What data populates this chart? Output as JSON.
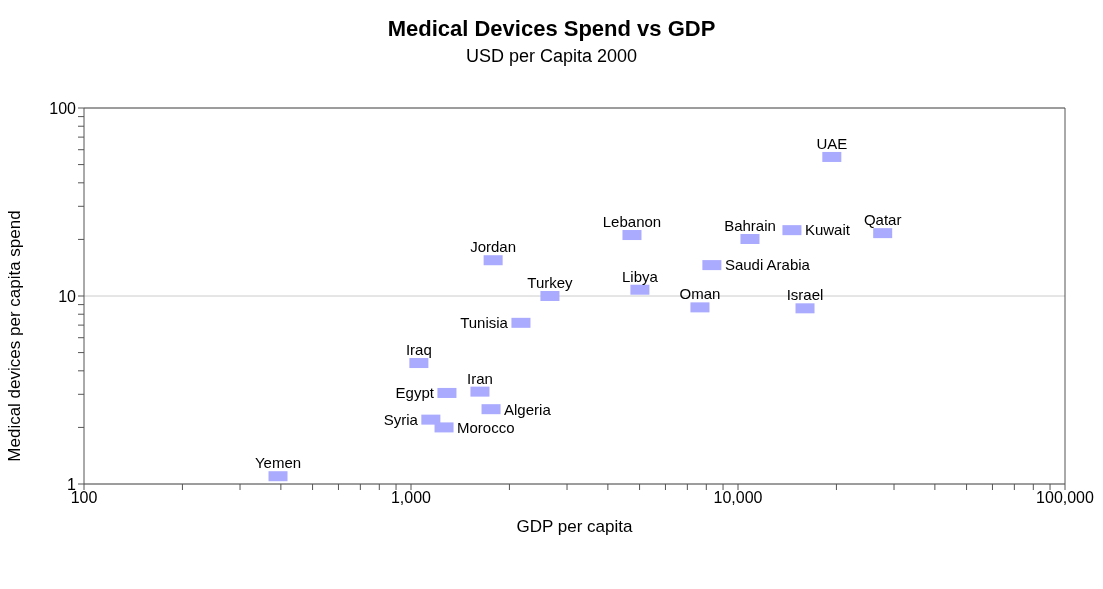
{
  "chart_data": {
    "type": "scatter",
    "title": "Medical Devices Spend vs GDP",
    "subtitle": "USD per Capita 2000",
    "xlabel": "GDP per capita",
    "ylabel": "Medical devices per capita spend",
    "log": "xy",
    "grid": "y",
    "marker": "square",
    "legend": false,
    "xlim": [
      100,
      100000
    ],
    "ylim": [
      1,
      100
    ],
    "xticks": [
      {
        "value": 100,
        "label": "100"
      },
      {
        "value": 200,
        "label": null
      },
      {
        "value": 300,
        "label": null
      },
      {
        "value": 400,
        "label": null
      },
      {
        "value": 500,
        "label": null
      },
      {
        "value": 600,
        "label": null
      },
      {
        "value": 700,
        "label": null
      },
      {
        "value": 800,
        "label": null
      },
      {
        "value": 900,
        "label": null
      },
      {
        "value": 1000,
        "label": "1,000"
      },
      {
        "value": 2000,
        "label": null
      },
      {
        "value": 3000,
        "label": null
      },
      {
        "value": 4000,
        "label": null
      },
      {
        "value": 5000,
        "label": null
      },
      {
        "value": 6000,
        "label": null
      },
      {
        "value": 7000,
        "label": null
      },
      {
        "value": 8000,
        "label": null
      },
      {
        "value": 9000,
        "label": null
      },
      {
        "value": 10000,
        "label": "10,000"
      },
      {
        "value": 20000,
        "label": null
      },
      {
        "value": 30000,
        "label": null
      },
      {
        "value": 40000,
        "label": null
      },
      {
        "value": 50000,
        "label": null
      },
      {
        "value": 60000,
        "label": null
      },
      {
        "value": 70000,
        "label": null
      },
      {
        "value": 80000,
        "label": null
      },
      {
        "value": 90000,
        "label": null
      },
      {
        "value": 100000,
        "label": "100,000"
      }
    ],
    "yticks": [
      1,
      {
        "value": 2,
        "label": null
      },
      {
        "value": 3,
        "label": null
      },
      {
        "value": 4,
        "label": null
      },
      {
        "value": 5,
        "label": null
      },
      {
        "value": 6,
        "label": null
      },
      {
        "value": 7,
        "label": null
      },
      {
        "value": 8,
        "label": null
      },
      {
        "value": 9,
        "label": null
      },
      10,
      {
        "value": 20,
        "label": null
      },
      {
        "value": 30,
        "label": null
      },
      {
        "value": 40,
        "label": null
      },
      {
        "value": 50,
        "label": null
      },
      {
        "value": 60,
        "label": null
      },
      {
        "value": 70,
        "label": null
      },
      {
        "value": 80,
        "label": null
      },
      {
        "value": 90,
        "label": null
      },
      100
    ],
    "series": [
      {
        "color": "#aaaaff",
        "x": [
          392,
          1057,
          1288,
          1625,
          1757,
          1150,
          1262,
          1783,
          2169,
          2660,
          4740,
          5012,
          7650,
          8320,
          10880,
          14620,
          19360,
          27700,
          16030
        ],
        "values": [
          1.1,
          4.4,
          3.05,
          3.1,
          2.5,
          2.2,
          2.0,
          15.5,
          7.2,
          10,
          21.1,
          10.8,
          8.7,
          14.6,
          20.1,
          22.4,
          54.9,
          21.6,
          8.6
        ]
      }
    ],
    "annotations": [
      {
        "text": "Yemen",
        "x": 392,
        "y": 1.1
      },
      {
        "text": "Iraq",
        "x": 1057,
        "y": 4.4
      },
      {
        "text": "Egypt",
        "x": 1288,
        "y": 3.05
      },
      {
        "text": "Iran",
        "x": 1625,
        "y": 3.1
      },
      {
        "text": "Algeria",
        "x": 1757,
        "y": 2.5
      },
      {
        "text": "Syria",
        "x": 1150,
        "y": 2.2
      },
      {
        "text": "Morocco",
        "x": 1262,
        "y": 2.0
      },
      {
        "text": "Jordan",
        "x": 1783,
        "y": 15.5
      },
      {
        "text": "Tunisia",
        "x": 2169,
        "y": 7.2
      },
      {
        "text": "Turkey",
        "x": 2660,
        "y": 10
      },
      {
        "text": "Lebanon",
        "x": 4740,
        "y": 21.1
      },
      {
        "text": "Libya",
        "x": 5012,
        "y": 10.8
      },
      {
        "text": "Oman",
        "x": 7650,
        "y": 8.7
      },
      {
        "text": "Saudi Arabia",
        "x": 8320,
        "y": 14.6
      },
      {
        "text": "Bahrain",
        "x": 10880,
        "y": 20.1
      },
      {
        "text": "Kuwait",
        "x": 14620,
        "y": 22.4
      },
      {
        "text": "UAE",
        "x": 19360,
        "y": 54.9
      },
      {
        "text": "Qatar",
        "x": 27700,
        "y": 21.6
      },
      {
        "text": "Israel",
        "x": 16030,
        "y": 8.6
      }
    ]
  }
}
